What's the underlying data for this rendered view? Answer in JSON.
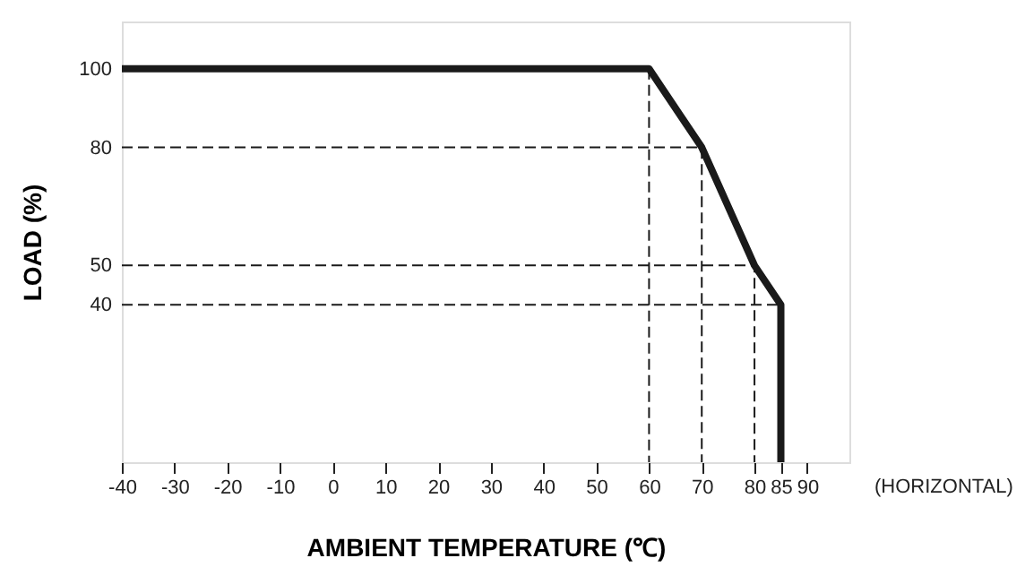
{
  "chart_data": {
    "type": "line",
    "xlabel": "AMBIENT TEMPERATURE (℃)",
    "ylabel": "LOAD (%)",
    "annotations": [
      "(HORIZONTAL)"
    ],
    "xlim": [
      -40,
      98
    ],
    "xticks": [
      -40,
      -30,
      -20,
      -10,
      0,
      10,
      20,
      30,
      40,
      50,
      60,
      70,
      80,
      85,
      90
    ],
    "ylim": [
      0,
      112
    ],
    "yticks": [
      40,
      50,
      80,
      100
    ],
    "grid": false,
    "marker": "none",
    "series": [
      {
        "color": "#1a1a1a",
        "x": [
          -40,
          60,
          70,
          80,
          85,
          85
        ],
        "values": [
          100,
          100,
          80,
          50,
          40,
          0
        ],
        "line_style": "solid"
      },
      {
        "type": "line",
        "color": "#1a1a1a",
        "x": [
          60,
          60
        ],
        "values": [
          100,
          0
        ],
        "line_style": "dashed"
      },
      {
        "type": "line",
        "color": "#1a1a1a",
        "x": [
          -40,
          70,
          70
        ],
        "values": [
          80,
          80,
          0
        ],
        "line_style": "dashed"
      },
      {
        "type": "line",
        "color": "#1a1a1a",
        "x": [
          -40,
          80,
          80
        ],
        "values": [
          50,
          50,
          0
        ],
        "line_style": "dashed"
      },
      {
        "type": "line",
        "color": "#1a1a1a",
        "x": [
          -40,
          85
        ],
        "values": [
          40,
          40
        ],
        "line_style": "dashed"
      }
    ]
  }
}
